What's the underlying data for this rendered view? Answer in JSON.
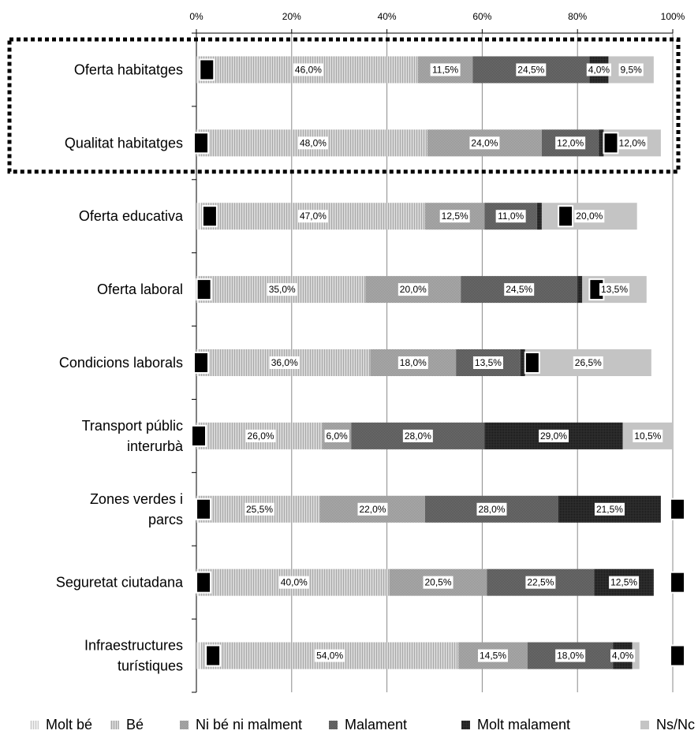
{
  "chart_data": {
    "type": "bar",
    "orientation": "horizontal",
    "stacked": true,
    "xlim": [
      0,
      100
    ],
    "x_ticks": [
      "0%",
      "20%",
      "40%",
      "60%",
      "80%",
      "100%"
    ],
    "grid": true,
    "legend_position": "bottom",
    "categories": [
      [
        "Oferta habitatges"
      ],
      [
        "Qualitat habitatges"
      ],
      [
        "Oferta educativa"
      ],
      [
        "Oferta laboral"
      ],
      [
        "Condicions laborals"
      ],
      [
        "Transport públic",
        "interurbà"
      ],
      [
        "Zones verdes i",
        "parcs"
      ],
      [
        "Seguretat ciutadana"
      ],
      [
        "Infraestructures",
        "turístiques"
      ]
    ],
    "series": [
      {
        "name": "Molt bé",
        "color": "#e4e4e4",
        "values": [
          0.5,
          0.5,
          1.0,
          0.5,
          0.5,
          0.5,
          0.5,
          0.5,
          1.0
        ]
      },
      {
        "name": "Bé",
        "color": "#c9c9c9",
        "values": [
          46.0,
          48.0,
          47.0,
          35.0,
          36.0,
          26.0,
          25.5,
          40.0,
          54.0
        ]
      },
      {
        "name": "Ni bé ni malment",
        "color": "#a6a6a6",
        "values": [
          11.5,
          24.0,
          12.5,
          20.0,
          18.0,
          6.0,
          22.0,
          20.5,
          14.5
        ]
      },
      {
        "name": "Malament",
        "color": "#666666",
        "values": [
          24.5,
          12.0,
          11.0,
          24.5,
          13.5,
          28.0,
          28.0,
          22.5,
          18.0
        ]
      },
      {
        "name": "Molt malament",
        "color": "#262626",
        "values": [
          4.0,
          1.0,
          1.0,
          1.0,
          1.0,
          29.0,
          21.5,
          12.5,
          4.0
        ]
      },
      {
        "name": "Ns/Nc",
        "color": "#c4c4c4",
        "values": [
          9.5,
          12.0,
          20.0,
          13.5,
          26.5,
          10.5,
          0.0,
          0.0,
          1.5
        ]
      }
    ],
    "data_labels": [
      [
        null,
        "46,0%",
        "11,5%",
        "24,5%",
        "4,0%",
        "9,5%"
      ],
      [
        null,
        "48,0%",
        "24,0%",
        "12,0%",
        null,
        "12,0%"
      ],
      [
        null,
        "47,0%",
        "12,5%",
        "11,0%",
        null,
        "20,0%"
      ],
      [
        null,
        "35,0%",
        "20,0%",
        "24,5%",
        null,
        "13,5%"
      ],
      [
        null,
        "36,0%",
        "18,0%",
        "13,5%",
        null,
        "26,5%"
      ],
      [
        null,
        "26,0%",
        "6,0%",
        "28,0%",
        "29,0%",
        "10,5%"
      ],
      [
        null,
        "25,5%",
        "22,0%",
        "28,0%",
        "21,5%",
        null
      ],
      [
        null,
        "40,0%",
        "20,5%",
        "22,5%",
        "12,5%",
        null
      ],
      [
        null,
        "54,0%",
        "14,5%",
        "18,0%",
        "4,0%",
        null
      ]
    ],
    "callouts": [
      {
        "row": 0,
        "at": 2.2
      },
      {
        "row": 1,
        "at": 1.0
      },
      {
        "row": 2,
        "at": 2.8
      },
      {
        "row": 3,
        "at": 1.6
      },
      {
        "row": 3,
        "at": 84.0
      },
      {
        "row": 4,
        "at": 1.0
      },
      {
        "row": 4,
        "at": 70.5
      },
      {
        "row": 1,
        "at": 87.0
      },
      {
        "row": 2,
        "at": 77.5
      },
      {
        "row": 5,
        "at": 0.5
      },
      {
        "row": 6,
        "at": 1.5
      },
      {
        "row": 6,
        "at": 101.0
      },
      {
        "row": 7,
        "at": 1.5
      },
      {
        "row": 7,
        "at": 101.0
      },
      {
        "row": 8,
        "at": 3.5
      },
      {
        "row": 8,
        "at": 101.0
      }
    ],
    "highlight_rows": [
      0,
      1
    ]
  }
}
